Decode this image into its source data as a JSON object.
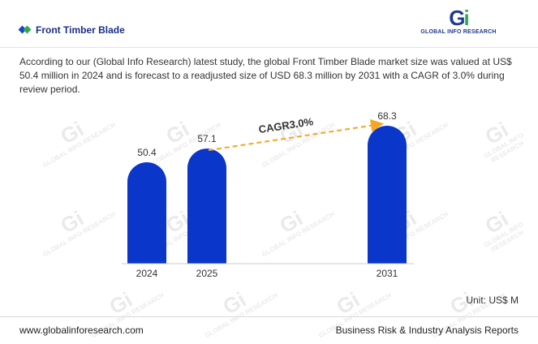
{
  "header": {
    "title": "Front Timber Blade",
    "logo_mark": "Gi",
    "logo_text": "GLOBAL INFO RESEARCH"
  },
  "description": "According to our (Global Info Research) latest study, the global Front Timber Blade market size was valued at US$ 50.4 million in 2024 and is forecast to a readjusted size of USD 68.3 million by 2031 with a CAGR of 3.0% during review period.",
  "watermark_text": "GLOBAL INFO RESEARCH",
  "unit_label": "Unit: US$ M",
  "footer": {
    "website": "www.globalinforesearch.com",
    "tagline": "Business Risk & Industry Analysis Reports"
  },
  "colors": {
    "bar": "#0a36c9",
    "cagr_arrow": "#f5a623",
    "title": "#1a2f8a"
  },
  "chart_data": {
    "type": "bar",
    "categories": [
      "2024",
      "2025",
      "2031"
    ],
    "values": [
      50.4,
      57.1,
      68.3
    ],
    "value_labels": [
      "50.4",
      "57.1",
      "68.3"
    ],
    "annotation": {
      "text": "CAGR3.0%",
      "from": "2025",
      "to": "2031"
    },
    "title": "",
    "xlabel": "",
    "ylabel": "",
    "ylim": [
      0,
      70
    ],
    "grid": false,
    "legend": "none"
  }
}
